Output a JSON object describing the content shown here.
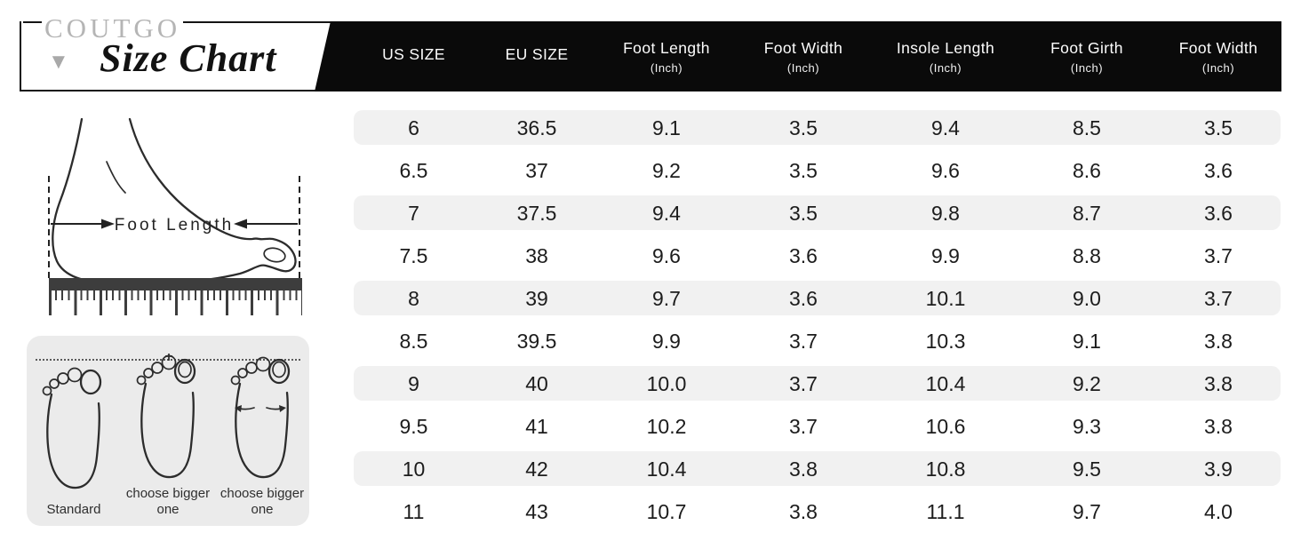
{
  "brand": {
    "name": "COUTGO",
    "title": "Size Chart"
  },
  "icons": {
    "dropdown_triangle": "▼"
  },
  "chart_data": {
    "type": "table",
    "title": "Size Chart",
    "columns": [
      {
        "label": "US SIZE",
        "unit": ""
      },
      {
        "label": "EU SIZE",
        "unit": ""
      },
      {
        "label": "Foot Length",
        "unit": "(Inch)"
      },
      {
        "label": "Foot Width",
        "unit": "(Inch)"
      },
      {
        "label": "Insole Length",
        "unit": "(Inch)"
      },
      {
        "label": "Foot Girth",
        "unit": "(Inch)"
      },
      {
        "label": "Foot Width",
        "unit": "(Inch)"
      }
    ],
    "rows": [
      [
        "6",
        "36.5",
        "9.1",
        "3.5",
        "9.4",
        "8.5",
        "3.5"
      ],
      [
        "6.5",
        "37",
        "9.2",
        "3.5",
        "9.6",
        "8.6",
        "3.6"
      ],
      [
        "7",
        "37.5",
        "9.4",
        "3.5",
        "9.8",
        "8.7",
        "3.6"
      ],
      [
        "7.5",
        "38",
        "9.6",
        "3.6",
        "9.9",
        "8.8",
        "3.7"
      ],
      [
        "8",
        "39",
        "9.7",
        "3.6",
        "10.1",
        "9.0",
        "3.7"
      ],
      [
        "8.5",
        "39.5",
        "9.9",
        "3.7",
        "10.3",
        "9.1",
        "3.8"
      ],
      [
        "9",
        "40",
        "10.0",
        "3.7",
        "10.4",
        "9.2",
        "3.8"
      ],
      [
        "9.5",
        "41",
        "10.2",
        "3.7",
        "10.6",
        "9.3",
        "3.8"
      ],
      [
        "10",
        "42",
        "10.4",
        "3.8",
        "10.8",
        "9.5",
        "3.9"
      ],
      [
        "11",
        "43",
        "10.7",
        "3.8",
        "11.1",
        "9.7",
        "4.0"
      ]
    ]
  },
  "measure_diagram": {
    "label": "Foot Length"
  },
  "fit_guide": {
    "labels": [
      "Standard",
      "choose bigger one",
      "choose bigger one"
    ]
  },
  "colors": {
    "header_bg": "#0a0a0a",
    "row_stripe": "#f1f1f1",
    "brand_gray": "#b5b5b5",
    "triangle_gray": "#a9a9a9",
    "sketch": "#2c2c2c"
  }
}
